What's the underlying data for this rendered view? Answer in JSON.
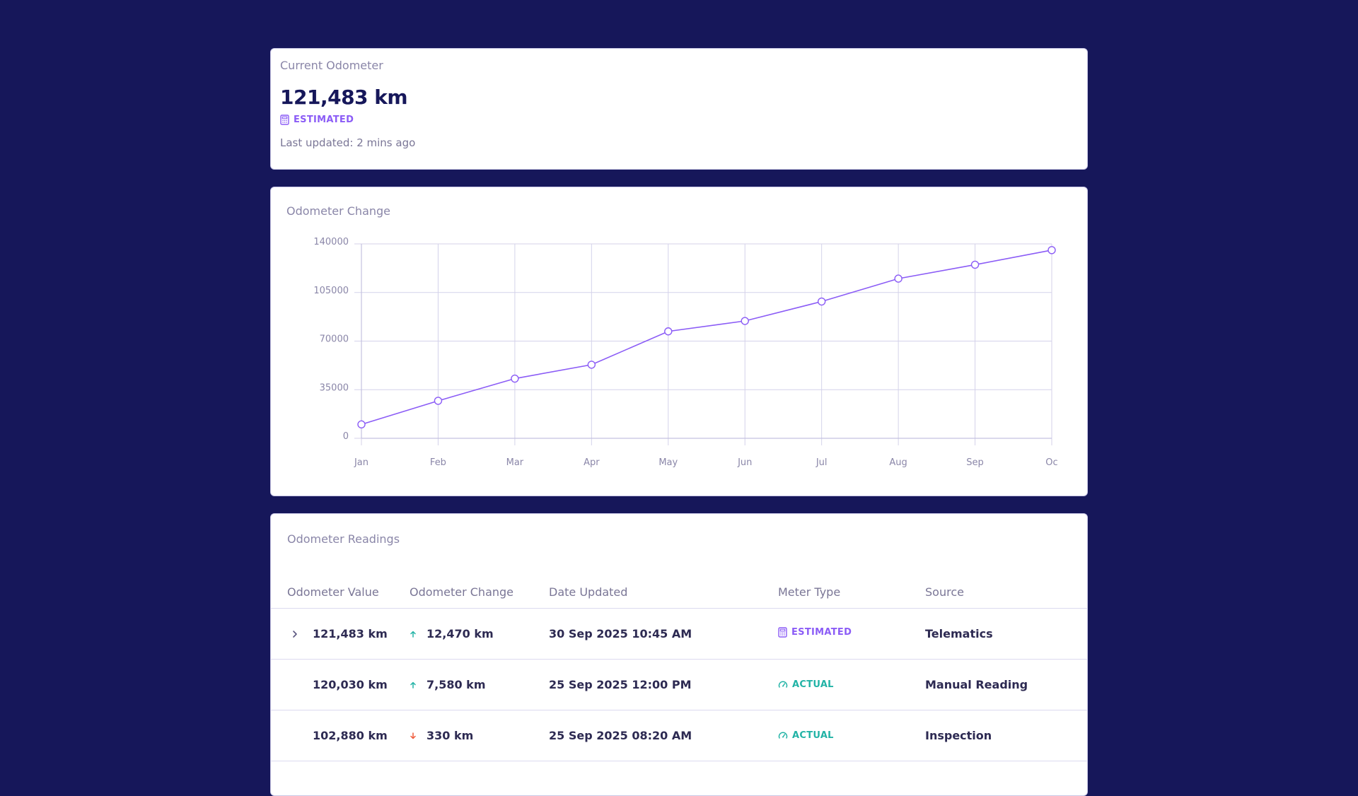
{
  "current_odometer": {
    "title": "Current Odometer",
    "value": "121,483 km",
    "meter_type": "ESTIMATED",
    "last_updated": "Last updated: 2 mins ago"
  },
  "chart": {
    "title": "Odometer Change",
    "accent_color": "#8b5cf6"
  },
  "chart_data": {
    "type": "line",
    "categories": [
      "Jan",
      "Feb",
      "Mar",
      "Apr",
      "May",
      "Jun",
      "Jul",
      "Aug",
      "Sep",
      "Oc"
    ],
    "series": [
      {
        "values": [
          10000,
          27000,
          43000,
          53000,
          77000,
          84500,
          98500,
          115000,
          125000,
          135500
        ]
      }
    ],
    "y_ticks": [
      "0",
      "35000",
      "70000",
      "105000",
      "140000"
    ],
    "ylim": [
      0,
      140000
    ],
    "grid": true,
    "title": "",
    "xlabel": "",
    "ylabel": ""
  },
  "readings": {
    "title": "Odometer Readings",
    "columns": [
      "Odometer Value",
      "Odometer Change",
      "Date Updated",
      "Meter Type",
      "Source"
    ],
    "rows": [
      {
        "value": "121,483 km",
        "change": "12,470 km",
        "direction": "up",
        "date": "30 Sep 2025 10:45 AM",
        "meter_type": "ESTIMATED",
        "source": "Telematics",
        "expandable": true
      },
      {
        "value": "120,030 km",
        "change": "7,580 km",
        "direction": "up",
        "date": "25 Sep 2025 12:00 PM",
        "meter_type": "ACTUAL",
        "source": "Manual Reading",
        "expandable": false
      },
      {
        "value": "102,880 km",
        "change": "330 km",
        "direction": "down",
        "date": "25 Sep 2025 08:20 AM",
        "meter_type": "ACTUAL",
        "source": "Inspection",
        "expandable": false
      }
    ]
  }
}
